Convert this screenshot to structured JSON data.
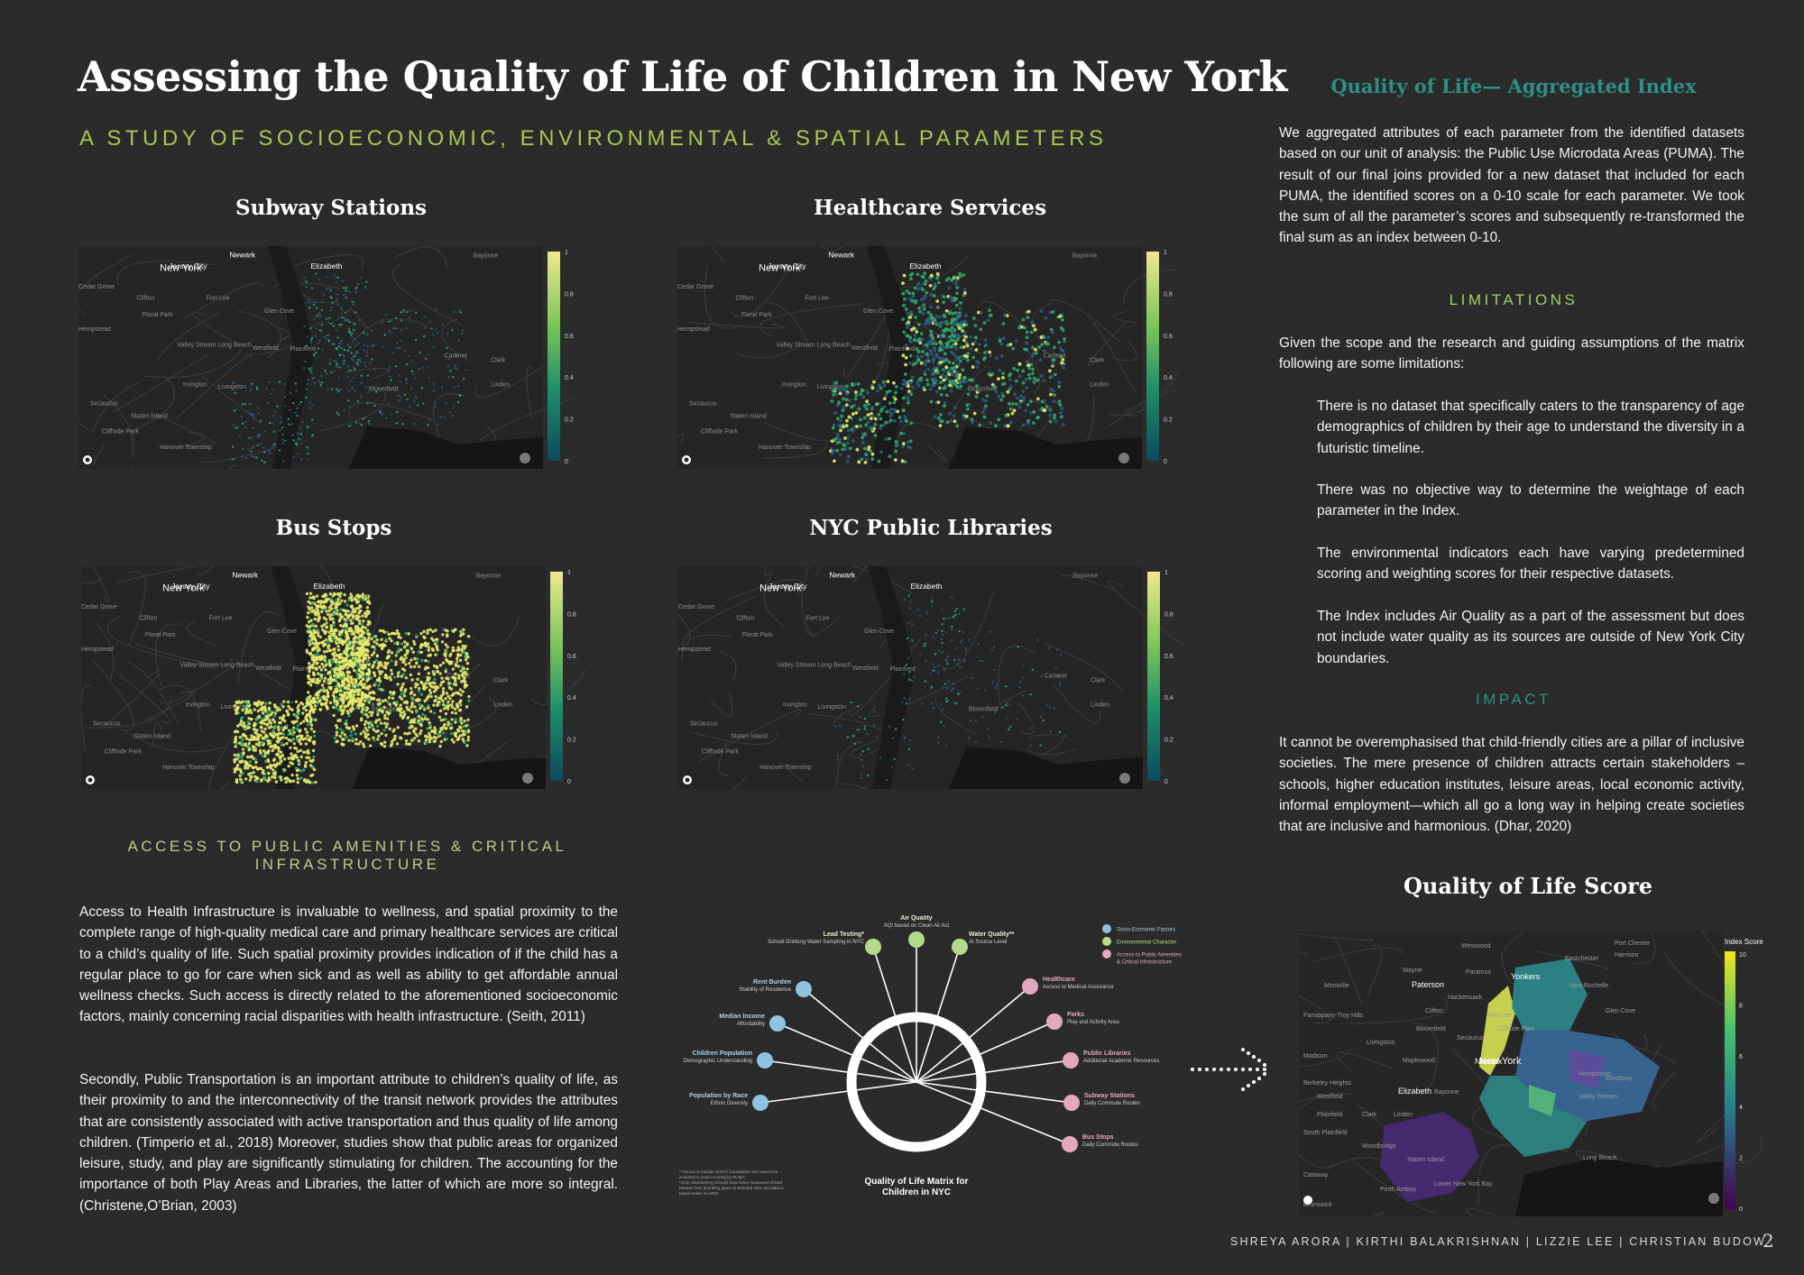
{
  "header": {
    "title": "Assessing the Quality of Life of Children in New York",
    "subtitle": "A STUDY OF SOCIOECONOMIC, ENVIRONMENTAL & SPATIAL PARAMETERS"
  },
  "maps": {
    "subway": "Subway Stations",
    "healthcare": "Healthcare Services",
    "bus": "Bus Stops",
    "libraries": "NYC Public Libraries",
    "colorbar_ticks": [
      "1",
      "0.8",
      "0.6",
      "0.4",
      "0.2",
      "0"
    ],
    "place_labels": [
      "Jersey City",
      "New York",
      "Newark",
      "Elizabeth",
      "Bayonne",
      "Cedar Grove",
      "Clifton",
      "Fort Lee",
      "Glen Cove",
      "Floral Park",
      "Hempstead",
      "Valley Stream",
      "Long Beach",
      "Westfield",
      "Plainfield",
      "Carteret",
      "Clark",
      "Linden",
      "Irvington",
      "Livingston",
      "Bloomfield",
      "Secaucus",
      "Cliffside Park",
      "Staten Island",
      "Hanover Township"
    ],
    "colors": {
      "low": "#2a5b7c",
      "mid": "#2fa56a",
      "high": "#e6ea6a"
    }
  },
  "access": {
    "heading": "ACCESS TO PUBLIC AMENITIES & CRITICAL INFRASTRUCTURE",
    "para1": "Access to Health Infrastructure is invaluable to wellness, and spatial proximity to the complete range of high-quality medical care and primary healthcare services are critical to a child’s quality of life. Such spatial proximity provides indication of if the child has a regular place to go for care when sick and as well as ability to get affordable annual wellness checks. Such access is directly related to the aforementioned socioeconomic factors, mainly concerning racial disparities with health infrastructure. (Seith, 2011)",
    "para2": "Secondly, Public Transportation is an important attribute to children’s quality of life, as their proximity to and the interconnectivity of the transit network provides the attributes that are consistently associated with active transportation and thus quality of life among children. (Timperio et al., 2018) Moreover, studies show that public areas for organized leisure, study, and play are significantly stimulating for children. The accounting for the importance of both Play Areas and Libraries, the latter of which are more so integral. (Christene,O’Brian, 2003)"
  },
  "matrix": {
    "title_line1": "Quality of Life Matrix for",
    "title_line2": "Children in NYC",
    "footnote": [
      "**Source is outside of NYC boundaries and cannot be",
      "included in matrix scoring by PUMA.",
      "*Only volunteering schools have been measured of lead",
      "release from plumbing pipes at selected sites and data is",
      "based solely on 2020"
    ],
    "legend": [
      {
        "label": "Socio-Economic Factors",
        "color": "#8fc3e0"
      },
      {
        "label": "Environmental Character",
        "color": "#b5d98a"
      },
      {
        "label": "Access to Public Amenities",
        "color": "#e3a7c0"
      },
      {
        "label": "& Critical Infrastructure",
        "color": "#e3a7c0"
      }
    ],
    "nodes": [
      {
        "name": "Lead Testing*",
        "sub": "School Drinking Water Sampling in NYC",
        "color": "#b5d98a"
      },
      {
        "name": "Air Quality",
        "sub": "AQI based on Clean Air Act",
        "color": "#b5d98a"
      },
      {
        "name": "Water Quality**",
        "sub": "At Source Level",
        "color": "#b5d98a"
      },
      {
        "name": "Rent Burden",
        "sub": "Stability of Residence",
        "color": "#8fc3e0"
      },
      {
        "name": "Median Income",
        "sub": "Affordability",
        "color": "#8fc3e0"
      },
      {
        "name": "Children Population",
        "sub": "Demographic Understanding",
        "color": "#8fc3e0"
      },
      {
        "name": "Population by Race",
        "sub": "Ethnic Diversity",
        "color": "#8fc3e0"
      },
      {
        "name": "Healthcare",
        "sub": "Access to Medical Assistance",
        "color": "#e3a7c0"
      },
      {
        "name": "Parks",
        "sub": "Play and Activity Area",
        "color": "#e3a7c0"
      },
      {
        "name": "Public Libraries",
        "sub": "Additional Academic Resources",
        "color": "#e3a7c0"
      },
      {
        "name": "Subway Stations",
        "sub": "Daily Commute Routes",
        "color": "#e3a7c0"
      },
      {
        "name": "Bus Stops",
        "sub": "Daily Commute Routes",
        "color": "#e3a7c0"
      }
    ]
  },
  "right": {
    "aggregated_title": "Quality of Life— Aggregated Index",
    "aggregated_text": "We aggregated attributes of each parameter from the identified datasets based on our unit of analysis: the Public Use Microdata Areas (PUMA). The result of our final joins provided for a new dataset that included for each PUMA, the identified scores on a 0-10 scale for each parameter. We took the sum of all the parameter’s scores and subsequently re-transformed the final sum as an index between 0-10.",
    "limitations_heading": "LIMITATIONS",
    "limitations_intro": "Given the scope and the research and guiding assumptions of the matrix following are some limitations:",
    "limitations_items": [
      "There is no dataset that specifically caters to the transparency of age demographics of children by their age to understand the diversity in a futuristic timeline.",
      "There was no objective way to determine the weightage of each parameter in the Index.",
      "The environmental indicators each have varying predetermined scoring and weighting scores for their respective datasets.",
      "The Index includes Air Quality as a part of the assessment but does not include water quality as its sources are outside of New York City boundaries."
    ],
    "impact_heading": "IMPACT",
    "impact_text": "It cannot be overemphasised that child-friendly cities are a pillar of inclusive societies. The mere presence of children attracts certain stakeholders – schools, higher education institutes, leisure areas, local economic activity, informal employment—which all go a long way in helping create societies that are inclusive and harmonious. (Dhar, 2020)",
    "score_title": "Quality of Life Score",
    "score_legend_title": "Index Score",
    "score_ticks": [
      "10",
      "8",
      "6",
      "4",
      "2",
      "0"
    ],
    "score_labels": [
      "Westwood",
      "Port Chester",
      "Harrison",
      "Eastchester",
      "Wayne",
      "Paramus",
      "Yonkers",
      "New Rochelle",
      "Montville",
      "Paterson",
      "Hackensack",
      "Glen Cove",
      "Parsippany-Troy Hills",
      "Clifton",
      "Fort Lee",
      "Bloomfield",
      "Cliffside Park",
      "Secaucus",
      "Livingston",
      "Madison",
      "Maplewood",
      "Newark",
      "New York",
      "Westbury",
      "Hempstead",
      "Berkeley Heights",
      "Westfield",
      "Elizabeth",
      "Bayonne",
      "Valley Stream",
      "Plainfield",
      "Clark",
      "Linden",
      "South Plainfield",
      "Woodbridge",
      "Staten Island",
      "Long Beach",
      "Cataway",
      "Perth Amboy",
      "Lower New York Bay",
      "Brunswick"
    ]
  },
  "footer": {
    "authors": "SHREYA ARORA | KIRTHI BALAKRISHNAN | LIZZIE LEE | CHRISTIAN BUDOW",
    "page": "2"
  }
}
